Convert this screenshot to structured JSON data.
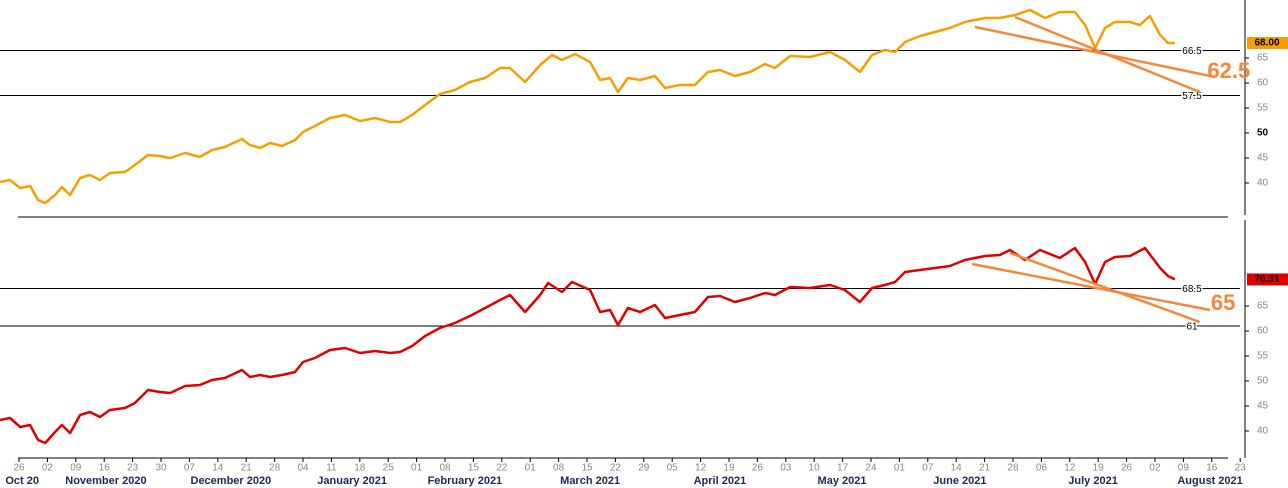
{
  "chart_data": [
    {
      "type": "line",
      "color": "#f5a000",
      "xlim": [
        -0.67,
        43.17
      ],
      "ylim": [
        33.6,
        76.6
      ],
      "yticks": [
        40,
        45,
        50,
        55,
        60,
        65
      ],
      "bold_tick": 50,
      "x": [
        -0.67,
        -0.32,
        0.04,
        0.39,
        0.67,
        0.92,
        1.27,
        1.51,
        1.8,
        2.15,
        2.5,
        2.85,
        3.2,
        3.73,
        4.08,
        4.54,
        4.96,
        5.32,
        5.85,
        6.37,
        6.8,
        7.25,
        7.85,
        8.13,
        8.49,
        8.84,
        9.26,
        9.72,
        10.0,
        10.42,
        10.95,
        11.48,
        12.01,
        12.54,
        13.06,
        13.42,
        13.84,
        14.3,
        14.82,
        15.35,
        15.88,
        16.41,
        16.94,
        17.29,
        17.82,
        18.35,
        18.77,
        19.12,
        19.58,
        20.11,
        20.46,
        20.81,
        21.09,
        21.44,
        21.87,
        22.39,
        22.75,
        23.27,
        23.8,
        24.26,
        24.68,
        25.21,
        25.74,
        26.27,
        26.62,
        27.15,
        27.85,
        28.56,
        29.08,
        29.61,
        30.04,
        30.49,
        30.85,
        31.2,
        31.73,
        32.25,
        32.78,
        33.31,
        34.01,
        34.54,
        35.07,
        35.6,
        36.13,
        36.65,
        37.18,
        37.54,
        37.89,
        38.24,
        38.59,
        39.12,
        39.47,
        39.82,
        40.18,
        40.46,
        40.7
      ],
      "series": [
        {
          "color": "#f5a000",
          "values": [
            40.2,
            40.6,
            39.0,
            39.4,
            36.6,
            36.0,
            37.6,
            39.2,
            37.6,
            41.0,
            41.6,
            40.6,
            42.0,
            42.2,
            43.6,
            45.6,
            45.4,
            45.0,
            46.0,
            45.2,
            46.6,
            47.2,
            48.8,
            47.6,
            47.0,
            48.0,
            47.4,
            48.6,
            50.2,
            51.4,
            53.0,
            53.6,
            52.4,
            53.0,
            52.2,
            52.2,
            53.6,
            55.6,
            57.8,
            58.6,
            60.2,
            61.0,
            63.0,
            63.0,
            60.2,
            63.6,
            65.6,
            64.6,
            65.8,
            64.2,
            60.6,
            61.0,
            58.2,
            61.0,
            60.6,
            61.4,
            59.0,
            59.6,
            59.6,
            62.2,
            62.6,
            61.4,
            62.2,
            63.8,
            63.0,
            65.4,
            65.2,
            66.2,
            64.6,
            62.2,
            65.6,
            66.6,
            66.2,
            68.2,
            69.4,
            70.2,
            71.0,
            72.2,
            73.0,
            73.0,
            73.6,
            74.6,
            73.0,
            74.2,
            74.2,
            71.6,
            67.0,
            71.0,
            72.2,
            72.2,
            71.6,
            73.4,
            69.6,
            68.0,
            68.0
          ]
        }
      ],
      "last_value_label": "68.00",
      "hlines": [
        66.5,
        57.5
      ],
      "trendlines": [
        {
          "x": [
            33.66,
            42.11
          ],
          "y": [
            71.2,
            61.2
          ]
        },
        {
          "x": [
            35.07,
            41.58
          ],
          "y": [
            73.2,
            58.2
          ]
        }
      ],
      "annotation": {
        "x": 42.6,
        "y": 62.2,
        "text": "62.5"
      }
    },
    {
      "type": "line",
      "color": "#e00000",
      "xlim": [
        -0.67,
        43.17
      ],
      "ylim": [
        34.6,
        82.6
      ],
      "yticks": [
        40,
        45,
        50,
        55,
        60,
        65
      ],
      "x": [
        -0.67,
        -0.32,
        0.04,
        0.39,
        0.67,
        0.92,
        1.27,
        1.51,
        1.8,
        2.15,
        2.5,
        2.85,
        3.2,
        3.73,
        4.08,
        4.54,
        4.96,
        5.32,
        5.85,
        6.37,
        6.8,
        7.25,
        7.85,
        8.13,
        8.49,
        8.84,
        9.26,
        9.72,
        10.0,
        10.42,
        10.95,
        11.48,
        12.01,
        12.54,
        13.06,
        13.42,
        13.84,
        14.3,
        14.82,
        15.35,
        15.88,
        16.41,
        16.94,
        17.29,
        17.82,
        18.35,
        18.63,
        19.12,
        19.47,
        20.11,
        20.46,
        20.81,
        21.09,
        21.44,
        21.87,
        22.39,
        22.75,
        23.27,
        23.8,
        24.26,
        24.68,
        25.21,
        25.74,
        26.27,
        26.62,
        27.15,
        27.85,
        28.56,
        29.08,
        29.61,
        30.04,
        30.49,
        30.85,
        31.2,
        31.73,
        32.25,
        32.78,
        33.31,
        34.01,
        34.54,
        34.89,
        35.42,
        35.95,
        36.65,
        37.18,
        37.54,
        37.89,
        38.24,
        38.59,
        39.12,
        39.65,
        40.18,
        40.46,
        40.7
      ],
      "series": [
        {
          "color": "#e00000",
          "values": [
            42.2,
            42.6,
            40.8,
            41.2,
            38.2,
            37.6,
            39.8,
            41.2,
            39.6,
            43.2,
            43.8,
            42.8,
            44.2,
            44.6,
            45.6,
            48.2,
            47.8,
            47.6,
            49.0,
            49.2,
            50.2,
            50.6,
            52.2,
            50.8,
            51.2,
            50.8,
            51.2,
            51.8,
            53.8,
            54.6,
            56.2,
            56.6,
            55.6,
            56.0,
            55.6,
            55.8,
            57.0,
            59.0,
            60.6,
            61.6,
            63.0,
            64.6,
            66.2,
            67.2,
            63.8,
            67.2,
            69.6,
            67.8,
            69.8,
            68.2,
            63.8,
            64.2,
            61.2,
            64.6,
            63.8,
            65.2,
            62.6,
            63.2,
            63.8,
            66.8,
            67.0,
            65.8,
            66.6,
            67.6,
            67.2,
            68.8,
            68.6,
            69.2,
            68.2,
            65.8,
            68.6,
            69.2,
            69.8,
            71.8,
            72.2,
            72.6,
            73.0,
            74.2,
            75.0,
            75.2,
            76.2,
            74.2,
            76.2,
            74.6,
            76.6,
            73.8,
            69.4,
            73.8,
            74.8,
            75.0,
            76.6,
            72.6,
            71.0,
            70.31
          ]
        }
      ],
      "last_value_label": "70.31",
      "hlines": [
        68.5,
        61
      ],
      "trendlines": [
        {
          "x": [
            33.56,
            41.94
          ],
          "y": [
            73.4,
            64.2
          ]
        },
        {
          "x": [
            34.89,
            41.58
          ],
          "y": [
            75.6,
            61.8
          ]
        }
      ],
      "annotation": {
        "x": 42.4,
        "y": 65.4,
        "text": "65"
      },
      "xticks": [
        {
          "value": 0,
          "label": "26"
        },
        {
          "value": 1,
          "label": "02"
        },
        {
          "value": 2,
          "label": "09"
        },
        {
          "value": 3,
          "label": "16"
        },
        {
          "value": 4,
          "label": "23"
        },
        {
          "value": 5,
          "label": "30"
        },
        {
          "value": 6,
          "label": "07"
        },
        {
          "value": 7,
          "label": "14"
        },
        {
          "value": 8,
          "label": "21"
        },
        {
          "value": 9,
          "label": "28"
        },
        {
          "value": 10,
          "label": "04"
        },
        {
          "value": 11,
          "label": "11"
        },
        {
          "value": 12,
          "label": "18"
        },
        {
          "value": 13,
          "label": "25"
        },
        {
          "value": 14,
          "label": "01"
        },
        {
          "value": 15,
          "label": "08"
        },
        {
          "value": 16,
          "label": "15"
        },
        {
          "value": 17,
          "label": "22"
        },
        {
          "value": 18,
          "label": "01"
        },
        {
          "value": 19,
          "label": "08"
        },
        {
          "value": 20,
          "label": "15"
        },
        {
          "value": 21,
          "label": "22"
        },
        {
          "value": 22,
          "label": "29"
        },
        {
          "value": 23,
          "label": "05"
        },
        {
          "value": 24,
          "label": "12"
        },
        {
          "value": 25,
          "label": "19"
        },
        {
          "value": 26,
          "label": "26"
        },
        {
          "value": 27,
          "label": "03"
        },
        {
          "value": 28,
          "label": "10"
        },
        {
          "value": 29,
          "label": "17"
        },
        {
          "value": 30,
          "label": "24"
        },
        {
          "value": 31,
          "label": "01"
        },
        {
          "value": 32,
          "label": "07"
        },
        {
          "value": 33,
          "label": "14"
        },
        {
          "value": 34,
          "label": "21"
        },
        {
          "value": 35,
          "label": "28"
        },
        {
          "value": 36,
          "label": "06"
        },
        {
          "value": 37,
          "label": "12"
        },
        {
          "value": 38,
          "label": "19"
        },
        {
          "value": 39,
          "label": "26"
        },
        {
          "value": 40,
          "label": "02"
        },
        {
          "value": 41,
          "label": "09"
        },
        {
          "value": 42,
          "label": "16"
        },
        {
          "value": 43,
          "label": "23"
        }
      ],
      "month_labels": [
        {
          "value": 0.11,
          "label": "Oct 20"
        },
        {
          "value": 3.06,
          "label": "November 2020"
        },
        {
          "value": 7.46,
          "label": "December 2020"
        },
        {
          "value": 11.73,
          "label": "January 2021"
        },
        {
          "value": 15.7,
          "label": "February 2021"
        },
        {
          "value": 20.11,
          "label": "March 2021"
        },
        {
          "value": 24.68,
          "label": "April 2021"
        },
        {
          "value": 28.98,
          "label": "May 2021"
        },
        {
          "value": 33.13,
          "label": "June 2021"
        },
        {
          "value": 37.82,
          "label": "July 2021"
        },
        {
          "value": 41.94,
          "label": "August 2021"
        }
      ]
    }
  ]
}
